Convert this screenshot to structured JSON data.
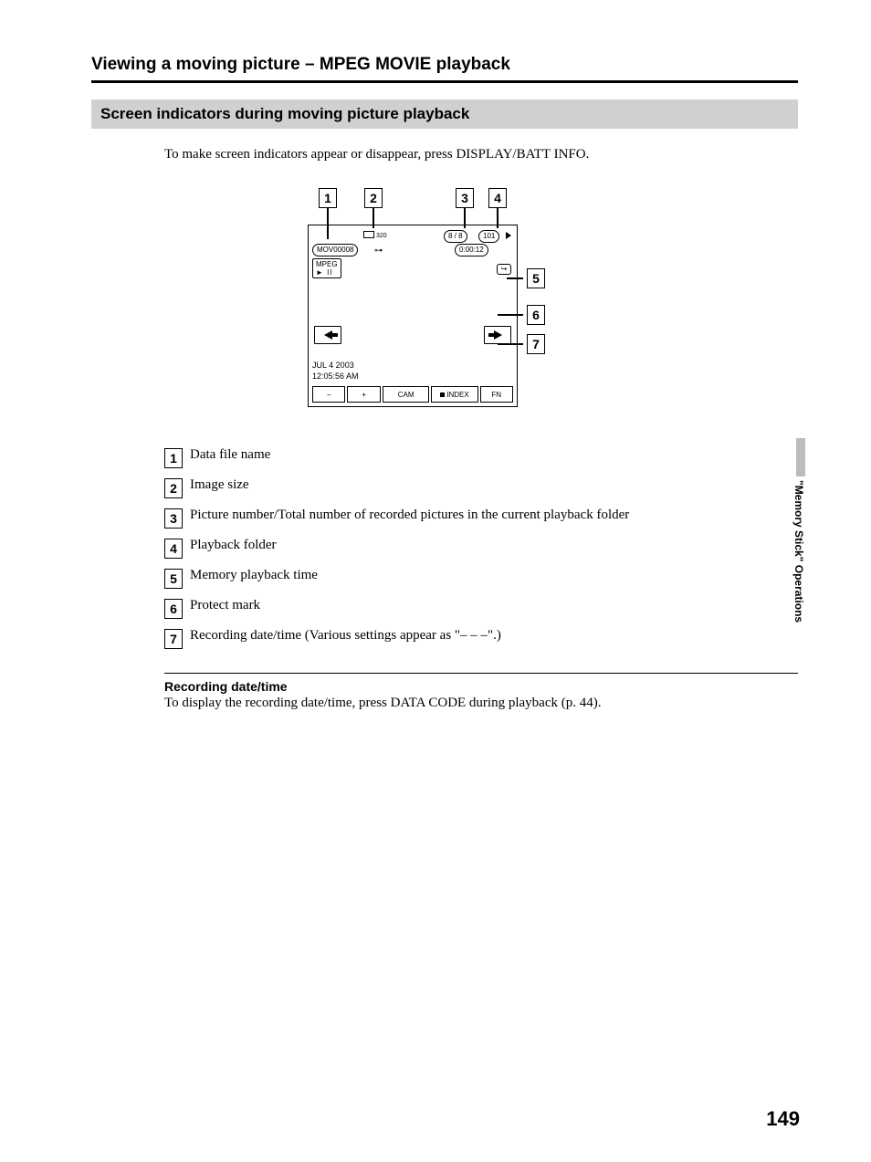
{
  "heading_main": "Viewing a moving picture – MPEG MOVIE playback",
  "section_title": "Screen indicators during moving picture playback",
  "intro": "To make screen indicators appear or disappear, press DISPLAY/BATT INFO.",
  "diagram": {
    "size_label": "320",
    "count": "8 / 8",
    "folder": "101",
    "filename": "MOV00008",
    "time": "0:00:12",
    "codec": "MPEG",
    "play_pause": "► II",
    "loop": "↪",
    "date": "JUL   4   2003",
    "clock": "12:05:56 AM",
    "bottom": {
      "minus": "−",
      "plus": "+",
      "cam": "CAM",
      "index": "INDEX",
      "fn": "FN"
    },
    "callouts": {
      "n1": "1",
      "n2": "2",
      "n3": "3",
      "n4": "4",
      "n5": "5",
      "n6": "6",
      "n7": "7"
    }
  },
  "legend": [
    {
      "n": "1",
      "text": "Data file name"
    },
    {
      "n": "2",
      "text": "Image size"
    },
    {
      "n": "3",
      "text": "Picture number/Total number of recorded pictures in the current playback folder"
    },
    {
      "n": "4",
      "text": "Playback folder"
    },
    {
      "n": "5",
      "text": "Memory playback time"
    },
    {
      "n": "6",
      "text": "Protect mark"
    },
    {
      "n": "7",
      "text": "Recording date/time (Various settings appear as \"– – –\".)"
    }
  ],
  "sub_heading": "Recording date/time",
  "sub_text": "To display the recording date/time, press DATA CODE during playback (p. 44).",
  "side_tab": "\"Memory Stick\" Operations",
  "page_number": "149"
}
